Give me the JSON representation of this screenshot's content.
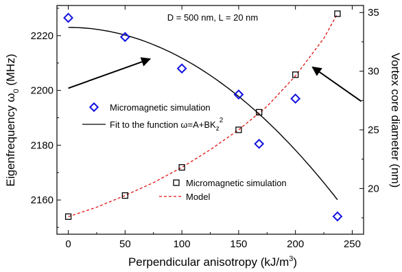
{
  "chart_data": {
    "type": "scatter",
    "annotation": "D = 500 nm, L = 20 nm",
    "x_axis": {
      "label": "Perpendicular anisotropy (kJ/m",
      "label_sup": "3",
      "label_end": ")",
      "range": [
        -10,
        260
      ],
      "ticks": [
        0,
        50,
        100,
        150,
        200,
        250
      ]
    },
    "y_left": {
      "label": "Eigenfrequency ω",
      "label_sub": "0",
      "label_unit": " (MHz)",
      "range": [
        2147.5,
        2231
      ],
      "ticks": [
        2160,
        2180,
        2200,
        2220
      ]
    },
    "y_right": {
      "label": "Vortex core diameter (nm)",
      "range": [
        16.1,
        35.6
      ],
      "ticks": [
        20,
        25,
        30,
        35
      ]
    },
    "series": [
      {
        "name": "Micromagnetic simulation",
        "axis": "left",
        "style": "diamond",
        "color": "#1010e0",
        "x": [
          0,
          50,
          100,
          150,
          168,
          200,
          237
        ],
        "y": [
          2226.5,
          2219.5,
          2208,
          2198.5,
          2180.5,
          2197,
          2154
        ]
      },
      {
        "name": "Fit to the function ω=A+BK",
        "name_sub": "z",
        "name_sup": "2",
        "axis": "left",
        "style": "solid-line",
        "color": "#000000",
        "fit": {
          "A": 2223,
          "B": -0.00112,
          "x_start": 0,
          "x_end": 237
        }
      },
      {
        "name": "Micromagnetic simulation",
        "axis": "right",
        "style": "square",
        "color": "#000000",
        "x": [
          0,
          50,
          100,
          150,
          168,
          200,
          237
        ],
        "y": [
          17.6,
          19.4,
          21.8,
          25.0,
          26.5,
          29.7,
          34.9
        ]
      },
      {
        "name": "Model",
        "axis": "right",
        "style": "dashed-line",
        "color": "#e01010",
        "x": [
          0,
          25,
          50,
          75,
          100,
          125,
          150,
          175,
          200,
          225,
          237
        ],
        "y": [
          17.6,
          18.4,
          19.4,
          20.5,
          21.8,
          23.3,
          25.0,
          27.0,
          29.6,
          32.8,
          34.9
        ]
      }
    ],
    "arrows": [
      {
        "from": [
          0,
          2200.8
        ],
        "to": [
          72,
          2211.5
        ],
        "axis": "left"
      },
      {
        "from": [
          258,
          2196
        ],
        "to": [
          215,
          2208.5
        ],
        "axis": "left"
      }
    ]
  }
}
